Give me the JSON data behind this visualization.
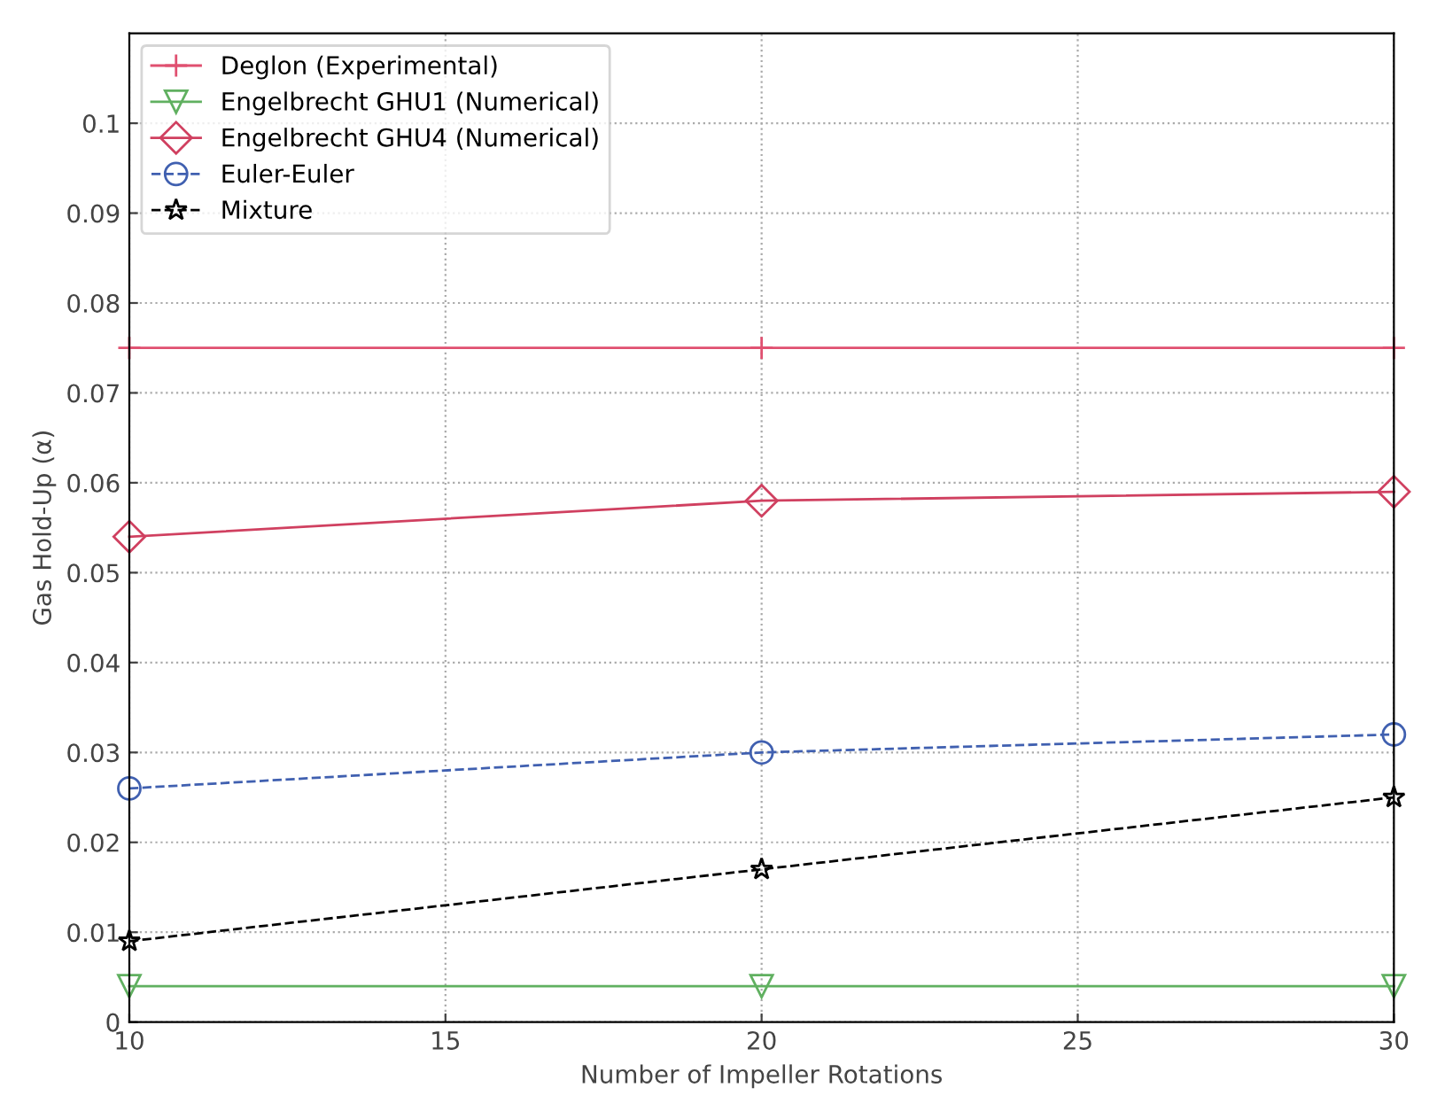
{
  "chart_data": {
    "type": "line",
    "xlabel": "Number of Impeller Rotations",
    "ylabel": "Gas Hold-Up (α)",
    "x": [
      10,
      20,
      30
    ],
    "xlim": [
      10,
      30
    ],
    "xticks": [
      10,
      15,
      20,
      25,
      30
    ],
    "ylim": [
      0,
      0.11
    ],
    "yticks": [
      0,
      0.01,
      0.02,
      0.03,
      0.04,
      0.05,
      0.06,
      0.07,
      0.08,
      0.09,
      0.1
    ],
    "grid": true,
    "legend": "top left",
    "series": [
      {
        "name": "Deglon (Experimental)",
        "color": "#e05070",
        "values": [
          0.075,
          0.075,
          0.075
        ],
        "marker": "cross",
        "line_style": "solid"
      },
      {
        "name": "Engelbrecht GHU1 (Numerical)",
        "color": "#60b060",
        "values": [
          0.004,
          0.004,
          0.004
        ],
        "marker": "triangle",
        "line_style": "solid"
      },
      {
        "name": "Engelbrecht GHU4 (Numerical)",
        "color": "#d04060",
        "values": [
          0.054,
          0.058,
          0.059
        ],
        "marker": "diamond",
        "line_style": "solid"
      },
      {
        "name": "Euler-Euler",
        "color": "#4060b0",
        "values": [
          0.026,
          0.03,
          0.032
        ],
        "marker": "circle",
        "line_style": "dashed"
      },
      {
        "name": "Mixture",
        "color": "#000000",
        "values": [
          0.009,
          0.017,
          0.025
        ],
        "marker": "star",
        "line_style": "dashed"
      }
    ]
  }
}
